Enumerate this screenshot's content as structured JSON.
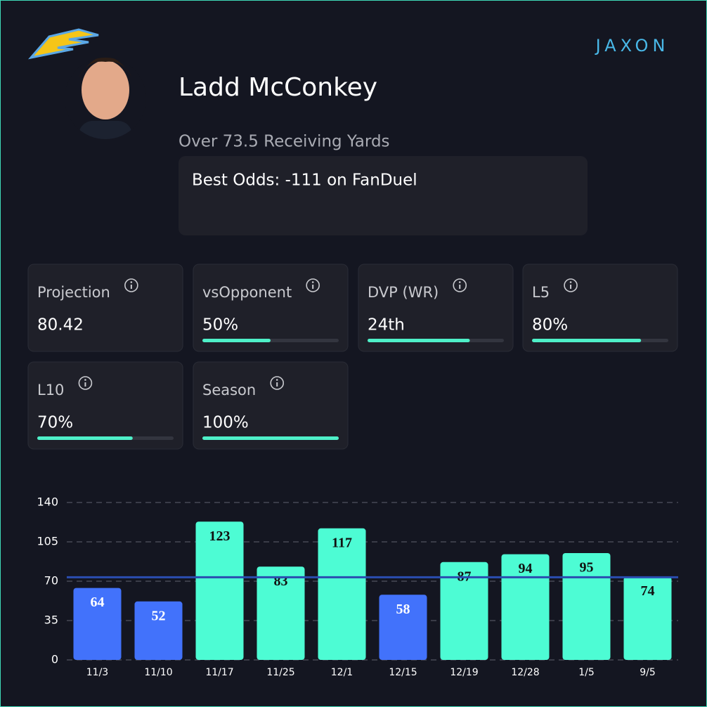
{
  "header": {
    "name": "Ladd McConkey",
    "prop": "Over 73.5 Receiving Yards",
    "odds": "Best Odds: -111 on FanDuel",
    "brand": "JAXON"
  },
  "stats": [
    {
      "label": "Projection",
      "value": "80.42"
    },
    {
      "label": "vsOpponent",
      "value": "50%",
      "progress": 50
    },
    {
      "label": "DVP (WR)",
      "value": "24th",
      "progress": 75
    },
    {
      "label": "L5",
      "value": "80%",
      "progress": 80
    },
    {
      "label": "L10",
      "value": "70%",
      "progress": 70
    },
    {
      "label": "Season",
      "value": "100%",
      "progress": 100
    }
  ],
  "chart_data": {
    "type": "bar",
    "categories": [
      "11/3",
      "11/10",
      "11/17",
      "11/25",
      "12/1",
      "12/15",
      "12/19",
      "12/28",
      "1/5",
      "9/5"
    ],
    "values": [
      64,
      52,
      123,
      83,
      117,
      58,
      87,
      94,
      95,
      74
    ],
    "colors": [
      "#4272fb",
      "#4272fb",
      "#4dfcd4",
      "#4dfcd4",
      "#4dfcd4",
      "#4272fb",
      "#4dfcd4",
      "#4dfcd4",
      "#4dfcd4",
      "#4dfcd4"
    ],
    "threshold": 73.5,
    "threshold_color": "#2a4db0",
    "ylim": [
      0,
      140
    ],
    "yticks": [
      0,
      35,
      70,
      105,
      140
    ],
    "grid": true
  }
}
